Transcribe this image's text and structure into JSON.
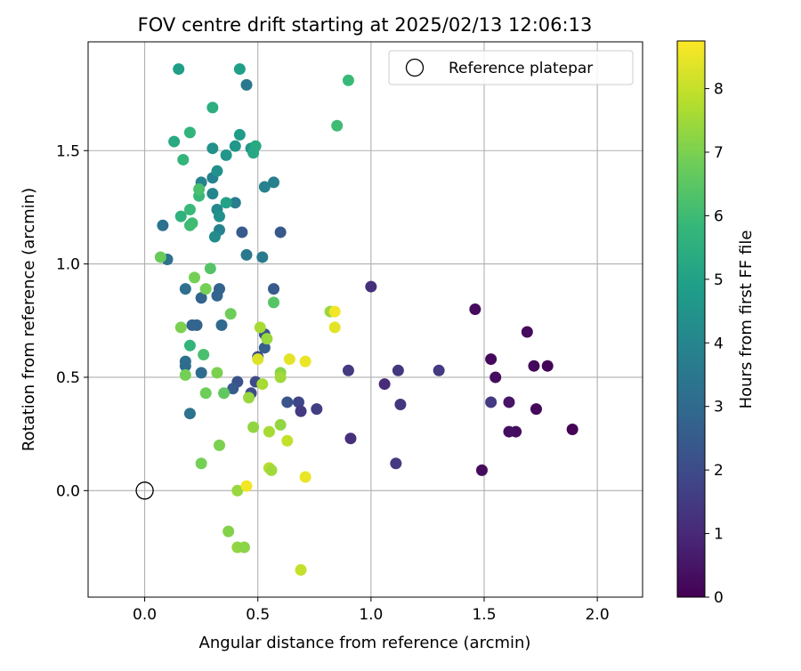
{
  "chart_data": {
    "type": "scatter",
    "title": "FOV centre drift starting at 2025/02/13 12:06:13",
    "xlabel": "Angular distance from reference (arcmin)",
    "ylabel": "Rotation from reference (arcmin)",
    "xlim": [
      -0.25,
      2.2
    ],
    "ylim": [
      -0.47,
      1.98
    ],
    "x_ticks": [
      0.0,
      0.5,
      1.0,
      1.5,
      2.0
    ],
    "x_tick_labels": [
      "0.0",
      "0.5",
      "1.0",
      "1.5",
      "2.0"
    ],
    "y_ticks": [
      0.0,
      0.5,
      1.0,
      1.5
    ],
    "y_tick_labels": [
      "0.0",
      "0.5",
      "1.0",
      "1.5"
    ],
    "grid": true,
    "legend": {
      "placement": "top-right",
      "entries": [
        "Reference platepar"
      ]
    },
    "reference_point": {
      "x": 0.0,
      "y": 0.0,
      "marker": "open-circle",
      "color": "#000000"
    },
    "colorbar": {
      "label": "Hours from first FF file",
      "range": [
        0,
        8.75
      ],
      "ticks": [
        0,
        1,
        2,
        3,
        4,
        5,
        6,
        7,
        8
      ],
      "tick_labels": [
        "0",
        "1",
        "2",
        "3",
        "4",
        "5",
        "6",
        "7",
        "8"
      ],
      "colormap": "viridis",
      "colormap_stops": [
        "#440154",
        "#482878",
        "#3e4a89",
        "#31688e",
        "#26828e",
        "#1f9e89",
        "#35b779",
        "#6dcd59",
        "#b4de2c",
        "#fde725"
      ]
    },
    "points": [
      {
        "x": 1.89,
        "y": 0.27,
        "t": 0.05
      },
      {
        "x": 1.78,
        "y": 0.55,
        "t": 0.1
      },
      {
        "x": 1.72,
        "y": 0.55,
        "t": 0.15
      },
      {
        "x": 1.73,
        "y": 0.36,
        "t": 0.2
      },
      {
        "x": 1.69,
        "y": 0.7,
        "t": 0.25
      },
      {
        "x": 1.64,
        "y": 0.26,
        "t": 0.3
      },
      {
        "x": 1.61,
        "y": 0.26,
        "t": 0.35
      },
      {
        "x": 1.55,
        "y": 0.5,
        "t": 0.3
      },
      {
        "x": 1.53,
        "y": 0.58,
        "t": 0.2
      },
      {
        "x": 1.49,
        "y": 0.09,
        "t": 0.25
      },
      {
        "x": 1.46,
        "y": 0.8,
        "t": 0.25
      },
      {
        "x": 1.61,
        "y": 0.39,
        "t": 0.5
      },
      {
        "x": 1.53,
        "y": 0.39,
        "t": 1.5
      },
      {
        "x": 1.3,
        "y": 0.53,
        "t": 1.5
      },
      {
        "x": 1.13,
        "y": 0.38,
        "t": 1.4
      },
      {
        "x": 1.12,
        "y": 0.53,
        "t": 1.4
      },
      {
        "x": 1.11,
        "y": 0.12,
        "t": 1.5
      },
      {
        "x": 1.06,
        "y": 0.47,
        "t": 1.1
      },
      {
        "x": 1.0,
        "y": 0.9,
        "t": 1.2
      },
      {
        "x": 0.91,
        "y": 0.23,
        "t": 1.2
      },
      {
        "x": 0.9,
        "y": 0.53,
        "t": 1.5
      },
      {
        "x": 0.76,
        "y": 0.36,
        "t": 1.6
      },
      {
        "x": 0.68,
        "y": 0.39,
        "t": 1.8
      },
      {
        "x": 0.69,
        "y": 0.35,
        "t": 1.5
      },
      {
        "x": 0.63,
        "y": 0.39,
        "t": 2.3
      },
      {
        "x": 0.57,
        "y": 0.89,
        "t": 2.5
      },
      {
        "x": 0.6,
        "y": 1.14,
        "t": 2.4
      },
      {
        "x": 0.53,
        "y": 0.69,
        "t": 2.3
      },
      {
        "x": 0.53,
        "y": 0.63,
        "t": 2.6
      },
      {
        "x": 0.5,
        "y": 0.59,
        "t": 2.0
      },
      {
        "x": 0.49,
        "y": 0.48,
        "t": 2.0
      },
      {
        "x": 0.47,
        "y": 0.43,
        "t": 2.0
      },
      {
        "x": 0.41,
        "y": 0.48,
        "t": 2.2
      },
      {
        "x": 0.39,
        "y": 0.45,
        "t": 2.5
      },
      {
        "x": 0.43,
        "y": 1.14,
        "t": 2.5
      },
      {
        "x": 0.33,
        "y": 0.89,
        "t": 2.8
      },
      {
        "x": 0.32,
        "y": 0.86,
        "t": 2.8
      },
      {
        "x": 0.34,
        "y": 0.73,
        "t": 3.0
      },
      {
        "x": 0.25,
        "y": 0.85,
        "t": 2.8
      },
      {
        "x": 0.23,
        "y": 0.73,
        "t": 2.8
      },
      {
        "x": 0.21,
        "y": 0.73,
        "t": 2.8
      },
      {
        "x": 0.18,
        "y": 0.89,
        "t": 3.2
      },
      {
        "x": 0.18,
        "y": 0.57,
        "t": 3.2
      },
      {
        "x": 0.18,
        "y": 0.55,
        "t": 3.1
      },
      {
        "x": 0.25,
        "y": 0.52,
        "t": 3.1
      },
      {
        "x": 0.2,
        "y": 0.34,
        "t": 3.3
      },
      {
        "x": 0.1,
        "y": 1.02,
        "t": 3.3
      },
      {
        "x": 0.08,
        "y": 1.17,
        "t": 3.3
      },
      {
        "x": 0.45,
        "y": 1.04,
        "t": 3.5
      },
      {
        "x": 0.52,
        "y": 1.03,
        "t": 3.6
      },
      {
        "x": 0.53,
        "y": 1.34,
        "t": 3.9
      },
      {
        "x": 0.57,
        "y": 1.36,
        "t": 3.8
      },
      {
        "x": 0.45,
        "y": 1.79,
        "t": 3.5
      },
      {
        "x": 0.4,
        "y": 1.27,
        "t": 3.7
      },
      {
        "x": 0.33,
        "y": 1.15,
        "t": 3.9
      },
      {
        "x": 0.31,
        "y": 1.12,
        "t": 4.2
      },
      {
        "x": 0.3,
        "y": 1.31,
        "t": 4.0
      },
      {
        "x": 0.32,
        "y": 1.24,
        "t": 4.1
      },
      {
        "x": 0.33,
        "y": 1.21,
        "t": 4.4
      },
      {
        "x": 0.25,
        "y": 1.36,
        "t": 3.9
      },
      {
        "x": 0.3,
        "y": 1.38,
        "t": 3.9
      },
      {
        "x": 0.32,
        "y": 1.41,
        "t": 4.4
      },
      {
        "x": 0.3,
        "y": 1.51,
        "t": 4.4
      },
      {
        "x": 0.36,
        "y": 1.48,
        "t": 4.6
      },
      {
        "x": 0.4,
        "y": 1.52,
        "t": 4.6
      },
      {
        "x": 0.42,
        "y": 1.57,
        "t": 4.8
      },
      {
        "x": 0.47,
        "y": 1.51,
        "t": 4.6
      },
      {
        "x": 0.49,
        "y": 1.52,
        "t": 5.3
      },
      {
        "x": 0.48,
        "y": 1.49,
        "t": 5.2
      },
      {
        "x": 0.36,
        "y": 1.27,
        "t": 5.0
      },
      {
        "x": 0.42,
        "y": 1.86,
        "t": 4.9
      },
      {
        "x": 0.15,
        "y": 1.86,
        "t": 4.9
      },
      {
        "x": 0.13,
        "y": 1.54,
        "t": 5.3
      },
      {
        "x": 0.3,
        "y": 1.69,
        "t": 5.5
      },
      {
        "x": 0.2,
        "y": 1.58,
        "t": 5.7
      },
      {
        "x": 0.17,
        "y": 1.46,
        "t": 5.7
      },
      {
        "x": 0.16,
        "y": 1.21,
        "t": 5.6
      },
      {
        "x": 0.2,
        "y": 1.24,
        "t": 5.9
      },
      {
        "x": 0.21,
        "y": 1.18,
        "t": 6.0
      },
      {
        "x": 0.2,
        "y": 1.17,
        "t": 6.0
      },
      {
        "x": 0.24,
        "y": 1.3,
        "t": 5.9
      },
      {
        "x": 0.24,
        "y": 1.33,
        "t": 6.2
      },
      {
        "x": 0.9,
        "y": 1.81,
        "t": 5.9
      },
      {
        "x": 0.85,
        "y": 1.61,
        "t": 6.0
      },
      {
        "x": 0.29,
        "y": 0.98,
        "t": 6.4
      },
      {
        "x": 0.07,
        "y": 1.03,
        "t": 6.7
      },
      {
        "x": 0.2,
        "y": 0.64,
        "t": 5.7
      },
      {
        "x": 0.26,
        "y": 0.6,
        "t": 6.2
      },
      {
        "x": 0.22,
        "y": 0.94,
        "t": 6.9
      },
      {
        "x": 0.27,
        "y": 0.89,
        "t": 6.9
      },
      {
        "x": 0.38,
        "y": 0.78,
        "t": 6.8
      },
      {
        "x": 0.57,
        "y": 0.83,
        "t": 6.4
      },
      {
        "x": 0.16,
        "y": 0.72,
        "t": 7.0
      },
      {
        "x": 0.18,
        "y": 0.51,
        "t": 6.9
      },
      {
        "x": 0.32,
        "y": 0.52,
        "t": 7.0
      },
      {
        "x": 0.27,
        "y": 0.43,
        "t": 6.8
      },
      {
        "x": 0.35,
        "y": 0.43,
        "t": 6.6
      },
      {
        "x": 0.33,
        "y": 0.2,
        "t": 7.0
      },
      {
        "x": 0.25,
        "y": 0.12,
        "t": 6.9
      },
      {
        "x": 0.46,
        "y": 0.41,
        "t": 7.4
      },
      {
        "x": 0.48,
        "y": 0.28,
        "t": 7.3
      },
      {
        "x": 0.52,
        "y": 0.47,
        "t": 7.6
      },
      {
        "x": 0.51,
        "y": 0.72,
        "t": 7.6
      },
      {
        "x": 0.54,
        "y": 0.67,
        "t": 7.4
      },
      {
        "x": 0.6,
        "y": 0.52,
        "t": 7.2
      },
      {
        "x": 0.6,
        "y": 0.5,
        "t": 7.5
      },
      {
        "x": 0.6,
        "y": 0.29,
        "t": 7.3
      },
      {
        "x": 0.55,
        "y": 0.26,
        "t": 7.6
      },
      {
        "x": 0.63,
        "y": 0.22,
        "t": 8.0
      },
      {
        "x": 0.55,
        "y": 0.1,
        "t": 7.8
      },
      {
        "x": 0.56,
        "y": 0.09,
        "t": 7.5
      },
      {
        "x": 0.82,
        "y": 0.79,
        "t": 7.4
      },
      {
        "x": 0.41,
        "y": 0.0,
        "t": 7.4
      },
      {
        "x": 0.37,
        "y": -0.18,
        "t": 7.1
      },
      {
        "x": 0.41,
        "y": -0.25,
        "t": 7.3
      },
      {
        "x": 0.44,
        "y": -0.25,
        "t": 7.2
      },
      {
        "x": 0.69,
        "y": -0.35,
        "t": 8.0
      },
      {
        "x": 0.64,
        "y": 0.58,
        "t": 8.4
      },
      {
        "x": 0.71,
        "y": 0.57,
        "t": 8.5
      },
      {
        "x": 0.5,
        "y": 0.58,
        "t": 8.3
      },
      {
        "x": 0.84,
        "y": 0.72,
        "t": 8.4
      },
      {
        "x": 0.84,
        "y": 0.79,
        "t": 8.6
      },
      {
        "x": 0.71,
        "y": 0.06,
        "t": 8.5
      },
      {
        "x": 0.45,
        "y": 0.02,
        "t": 8.6
      }
    ]
  }
}
